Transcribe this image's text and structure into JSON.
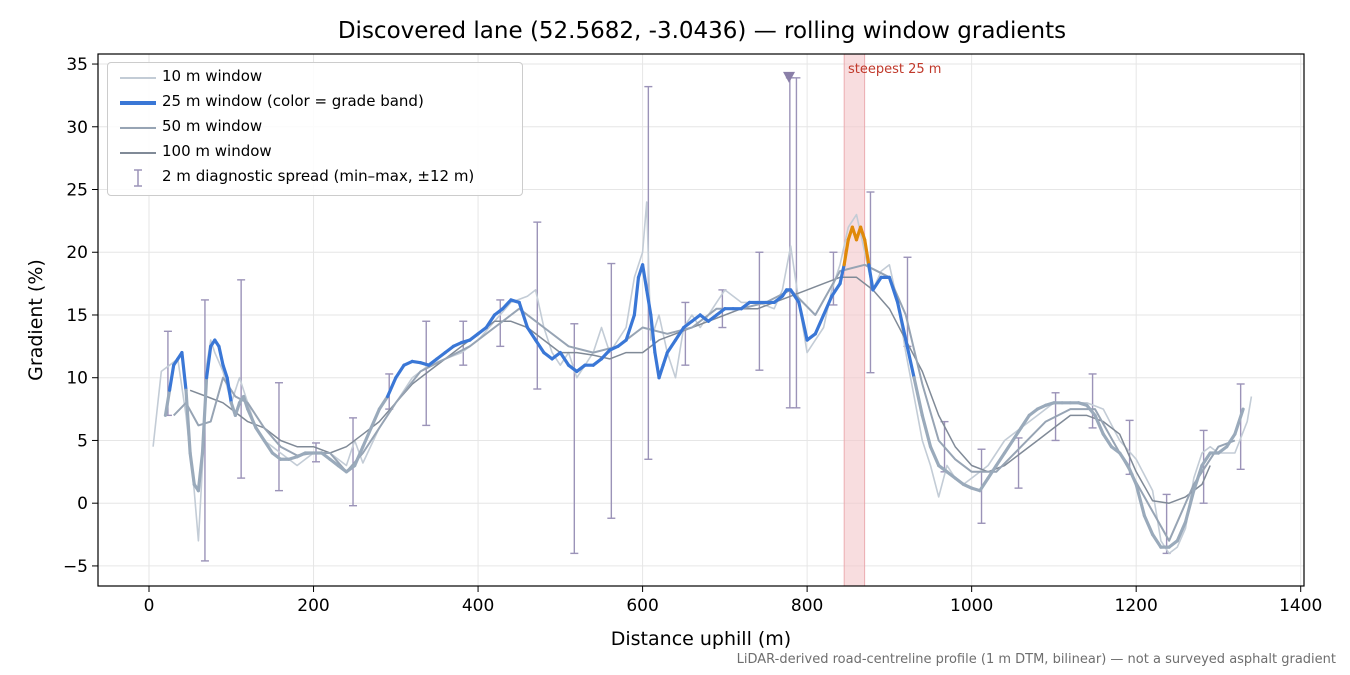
{
  "title": "Discovered lane (52.5682, -3.0436) — rolling window gradients",
  "footnote": "LiDAR-derived road-centreline profile (1 m DTM, bilinear) — not a surveyed asphalt gradient",
  "steepest_label": "steepest 25 m",
  "legend": [
    {
      "label": "10 m window",
      "color": "#c3ccd6",
      "style": "line-thin"
    },
    {
      "label": "25 m window (color = grade band)",
      "color": "#3a77d6",
      "style": "line-thick"
    },
    {
      "label": "50 m window",
      "color": "#97a4b4",
      "style": "line"
    },
    {
      "label": "100 m window",
      "color": "#808a97",
      "style": "line"
    },
    {
      "label": "2 m diagnostic spread (min–max, ±12 m)",
      "color": "#9b93b8",
      "style": "errorbar"
    }
  ],
  "colors": {
    "w10": "#c3ccd6",
    "w25": "#3a77d6",
    "w25_muted": "#9aaabb",
    "w25_steep": "#e08a0a",
    "w50": "#97a4b4",
    "w100": "#808a97",
    "errorbar": "#9b93b8",
    "highlight": "#f4c7c9",
    "marker": "#8a7fa8"
  },
  "chart_data": {
    "type": "line",
    "title": "Discovered lane (52.5682, -3.0436) — rolling window gradients",
    "xlabel": "Distance uphill (m)",
    "ylabel": "Gradient (%)",
    "xlim": [
      -62,
      1404
    ],
    "ylim": [
      -6.6,
      35.8
    ],
    "xticks": [
      0,
      200,
      400,
      600,
      800,
      1000,
      1200,
      1400
    ],
    "yticks": [
      -5,
      0,
      5,
      10,
      15,
      20,
      25,
      30,
      35
    ],
    "grid": true,
    "legend_position": "top-left",
    "steepest_window": {
      "x_start": 845,
      "x_end": 870,
      "label": "steepest 25 m"
    },
    "marker": {
      "x": 778,
      "y": 33.9,
      "shape": "triangle-down"
    },
    "series": [
      {
        "name": "10 m window",
        "x": [
          5,
          15,
          25,
          35,
          45,
          55,
          60,
          65,
          70,
          75,
          80,
          90,
          100,
          110,
          120,
          130,
          140,
          150,
          160,
          170,
          180,
          200,
          220,
          240,
          250,
          260,
          280,
          300,
          320,
          340,
          360,
          380,
          400,
          420,
          440,
          460,
          470,
          480,
          490,
          500,
          510,
          520,
          530,
          540,
          550,
          560,
          570,
          580,
          590,
          600,
          605,
          610,
          620,
          630,
          640,
          650,
          660,
          670,
          680,
          690,
          700,
          720,
          740,
          760,
          770,
          780,
          790,
          800,
          810,
          820,
          830,
          840,
          850,
          860,
          870,
          880,
          890,
          900,
          910,
          920,
          930,
          940,
          950,
          960,
          970,
          980,
          990,
          1000,
          1020,
          1040,
          1060,
          1080,
          1100,
          1120,
          1140,
          1160,
          1180,
          1200,
          1220,
          1230,
          1240,
          1250,
          1260,
          1270,
          1280,
          1290,
          1300,
          1320,
          1335,
          1340
        ],
        "y": [
          4.5,
          10.5,
          11,
          11.5,
          7,
          1,
          -3,
          3,
          11,
          13,
          12,
          10.5,
          8,
          10,
          8,
          6,
          5,
          4.5,
          4,
          3.5,
          3,
          4,
          4,
          3,
          5,
          3.2,
          6,
          8,
          10,
          11,
          11.5,
          12,
          13,
          14.5,
          16,
          16.5,
          17,
          14,
          12,
          11,
          12,
          10,
          11,
          12,
          14,
          12,
          13,
          14,
          18,
          20,
          24,
          13,
          15,
          12,
          10,
          14,
          15,
          14,
          15,
          16,
          17,
          16,
          16,
          15.5,
          17,
          20.5,
          16,
          12,
          13,
          14,
          17,
          19,
          22,
          23,
          20,
          17,
          18.5,
          19,
          16,
          12,
          8.5,
          5,
          3,
          0.5,
          3,
          2,
          1.5,
          2,
          3,
          5,
          6,
          7,
          8,
          8,
          8,
          7.5,
          5,
          3.5,
          1,
          -3,
          -4,
          -3.5,
          -2,
          2,
          4,
          4.5,
          4,
          4,
          6.5,
          8.5
        ]
      },
      {
        "name": "25 m window (color = grade band)",
        "x": [
          20,
          25,
          30,
          35,
          40,
          45,
          50,
          55,
          60,
          65,
          70,
          75,
          80,
          85,
          90,
          95,
          100,
          105,
          110,
          115,
          120,
          130,
          140,
          150,
          160,
          170,
          180,
          190,
          200,
          210,
          220,
          230,
          240,
          250,
          260,
          270,
          280,
          290,
          300,
          310,
          320,
          330,
          340,
          350,
          360,
          370,
          380,
          390,
          400,
          410,
          420,
          430,
          440,
          450,
          460,
          470,
          480,
          490,
          500,
          510,
          520,
          530,
          540,
          550,
          560,
          570,
          580,
          590,
          595,
          600,
          605,
          610,
          615,
          620,
          625,
          630,
          640,
          650,
          660,
          670,
          680,
          690,
          700,
          710,
          720,
          730,
          740,
          750,
          760,
          770,
          775,
          780,
          790,
          800,
          810,
          820,
          830,
          840,
          845,
          850,
          855,
          860,
          865,
          870,
          875,
          880,
          890,
          900,
          910,
          920,
          930,
          940,
          950,
          960,
          970,
          980,
          990,
          1000,
          1010,
          1020,
          1030,
          1040,
          1050,
          1060,
          1070,
          1080,
          1090,
          1100,
          1110,
          1120,
          1130,
          1140,
          1150,
          1160,
          1170,
          1180,
          1190,
          1200,
          1210,
          1220,
          1230,
          1240,
          1250,
          1260,
          1270,
          1280,
          1290,
          1300,
          1310,
          1320,
          1330
        ],
        "y": [
          7,
          9,
          11,
          11.5,
          12,
          9,
          4,
          1.5,
          1,
          4,
          10,
          12.5,
          13,
          12.5,
          11,
          10,
          8,
          7,
          8,
          8.5,
          7.5,
          6,
          5,
          4,
          3.5,
          3.5,
          3.7,
          4,
          4,
          4,
          3.5,
          3,
          2.5,
          3,
          4.5,
          6,
          7.5,
          8.5,
          10,
          11,
          11.3,
          11.2,
          11,
          11.5,
          12,
          12.5,
          12.8,
          13,
          13.5,
          14,
          15,
          15.5,
          16.2,
          16,
          14,
          13,
          12,
          11.5,
          12,
          11,
          10.5,
          11,
          11,
          11.5,
          12.2,
          12.5,
          13,
          15,
          18,
          19,
          17,
          15,
          12,
          10,
          11,
          12,
          13,
          14,
          14.5,
          15,
          14.5,
          15,
          15.5,
          15.5,
          15.5,
          16,
          16,
          16,
          16,
          16.5,
          17,
          17,
          16,
          13,
          13.5,
          15,
          16.5,
          17.5,
          19,
          21,
          22,
          21,
          22,
          21,
          19,
          17,
          18,
          18,
          16,
          13,
          10,
          7,
          4.5,
          3,
          2.5,
          2,
          1.5,
          1.2,
          1,
          2,
          3,
          4,
          5,
          6,
          7,
          7.5,
          7.8,
          8,
          8,
          8,
          8,
          7.8,
          7,
          5.5,
          4.5,
          4,
          3,
          1.5,
          -1,
          -2.5,
          -3.5,
          -3.5,
          -3,
          -1.5,
          1,
          3,
          4,
          4,
          4.5,
          5.5,
          7.5
        ]
      },
      {
        "name": "50 m window",
        "x": [
          30,
          45,
          60,
          75,
          90,
          105,
          120,
          140,
          160,
          180,
          200,
          220,
          240,
          260,
          280,
          300,
          330,
          360,
          390,
          420,
          450,
          480,
          510,
          540,
          570,
          600,
          630,
          660,
          690,
          720,
          750,
          780,
          810,
          840,
          870,
          900,
          920,
          940,
          960,
          980,
          1000,
          1030,
          1060,
          1090,
          1120,
          1150,
          1180,
          1210,
          1240,
          1270,
          1300,
          1320
        ],
        "y": [
          7,
          8,
          6.2,
          6.5,
          10,
          8.5,
          8,
          6,
          4.5,
          3.8,
          4,
          4,
          2.5,
          4,
          6,
          8,
          10.5,
          11.5,
          12.5,
          14,
          15.5,
          14,
          12.5,
          12,
          12.5,
          14,
          13.5,
          14,
          15.5,
          15.5,
          16,
          17,
          15,
          18.5,
          19,
          18,
          15,
          9.5,
          5,
          3.5,
          2.5,
          2.5,
          4.5,
          6.5,
          7.5,
          7.5,
          4,
          0.5,
          -3,
          1.5,
          4.5,
          5
        ]
      },
      {
        "name": "100 m window",
        "x": [
          50,
          70,
          90,
          100,
          120,
          140,
          160,
          180,
          200,
          220,
          240,
          260,
          280,
          300,
          320,
          340,
          360,
          380,
          400,
          420,
          440,
          460,
          480,
          500,
          520,
          540,
          560,
          580,
          600,
          620,
          640,
          660,
          680,
          700,
          720,
          740,
          760,
          780,
          800,
          820,
          840,
          860,
          880,
          900,
          920,
          940,
          960,
          980,
          1000,
          1020,
          1040,
          1060,
          1080,
          1100,
          1120,
          1140,
          1160,
          1180,
          1200,
          1220,
          1240,
          1260,
          1280,
          1290
        ],
        "y": [
          9,
          8.5,
          8,
          7.5,
          6.5,
          6,
          5,
          4.5,
          4.5,
          4,
          4.5,
          5.5,
          6.5,
          8,
          9.5,
          10.5,
          11.5,
          12.5,
          13.5,
          14.5,
          14.5,
          14,
          13,
          12,
          12,
          11.8,
          11.5,
          12,
          12,
          13,
          13.5,
          14,
          14.5,
          15,
          15.5,
          15.5,
          16,
          16.5,
          17,
          17.5,
          18,
          18,
          17,
          15.5,
          13,
          10.5,
          7,
          4.5,
          3,
          2.5,
          3,
          4,
          5,
          6,
          7,
          7,
          6.5,
          5.5,
          2.5,
          0.2,
          0,
          0.5,
          1.5,
          3
        ]
      }
    ],
    "errorbars": [
      {
        "x": 23,
        "min": 7,
        "max": 13.7
      },
      {
        "x": 68,
        "min": -4.6,
        "max": 16.2
      },
      {
        "x": 112,
        "min": 2,
        "max": 17.8
      },
      {
        "x": 158,
        "min": 1,
        "max": 9.6
      },
      {
        "x": 203,
        "min": 3.3,
        "max": 4.8
      },
      {
        "x": 248,
        "min": -0.2,
        "max": 6.8
      },
      {
        "x": 292,
        "min": 7.5,
        "max": 10.3
      },
      {
        "x": 337,
        "min": 6.2,
        "max": 14.5
      },
      {
        "x": 382,
        "min": 11,
        "max": 14.5
      },
      {
        "x": 427,
        "min": 12.5,
        "max": 16.2
      },
      {
        "x": 472,
        "min": 9.1,
        "max": 22.4
      },
      {
        "x": 517,
        "min": -4,
        "max": 14.3
      },
      {
        "x": 562,
        "min": -1.2,
        "max": 19.1
      },
      {
        "x": 607,
        "min": 3.5,
        "max": 33.2
      },
      {
        "x": 652,
        "min": 11,
        "max": 16
      },
      {
        "x": 697,
        "min": 14,
        "max": 17
      },
      {
        "x": 742,
        "min": 10.6,
        "max": 20
      },
      {
        "x": 779,
        "min": 7.6,
        "max": 33.9
      },
      {
        "x": 787,
        "min": 7.6,
        "max": 33.9
      },
      {
        "x": 832,
        "min": 15.8,
        "max": 20
      },
      {
        "x": 877,
        "min": 10.4,
        "max": 24.8
      },
      {
        "x": 922,
        "min": 12.5,
        "max": 19.6
      },
      {
        "x": 967,
        "min": 2.5,
        "max": 6.5
      },
      {
        "x": 1012,
        "min": -1.6,
        "max": 4.3
      },
      {
        "x": 1057,
        "min": 1.2,
        "max": 5.2
      },
      {
        "x": 1102,
        "min": 5,
        "max": 8.8
      },
      {
        "x": 1147,
        "min": 6,
        "max": 10.3
      },
      {
        "x": 1192,
        "min": 2.3,
        "max": 6.6
      },
      {
        "x": 1237,
        "min": -4,
        "max": 0.7
      },
      {
        "x": 1282,
        "min": 0,
        "max": 5.8
      },
      {
        "x": 1327,
        "min": 2.7,
        "max": 9.5
      }
    ]
  }
}
